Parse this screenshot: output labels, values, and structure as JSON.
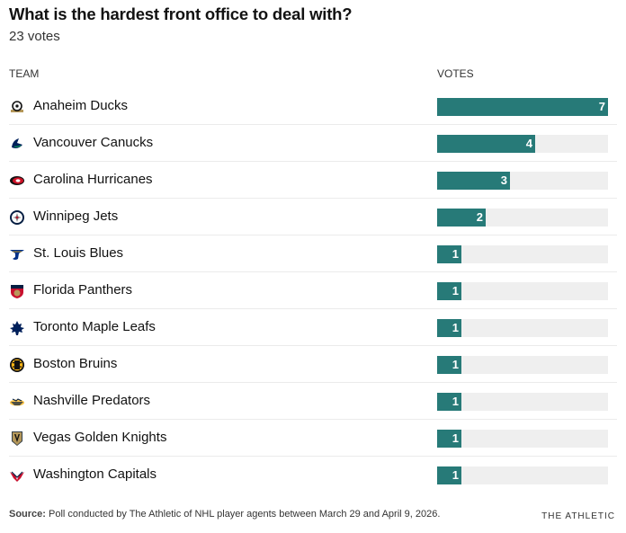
{
  "header": {
    "title": "What is the hardest front office to deal with?",
    "subtitle": "23 votes"
  },
  "columns": {
    "team": "TEAM",
    "votes": "VOTES"
  },
  "colors": {
    "bar": "#277a78",
    "track": "#efefef"
  },
  "chart_data": {
    "type": "bar",
    "orientation": "horizontal",
    "title": "What is the hardest front office to deal with?",
    "subtitle": "23 votes",
    "xlabel": "VOTES",
    "ylabel": "TEAM",
    "xlim": [
      0,
      7
    ],
    "categories": [
      "Anaheim Ducks",
      "Vancouver Canucks",
      "Carolina Hurricanes",
      "Winnipeg Jets",
      "St. Louis Blues",
      "Florida Panthers",
      "Toronto Maple Leafs",
      "Boston Bruins",
      "Nashville Predators",
      "Vegas Golden Knights",
      "Washington Capitals"
    ],
    "values": [
      7,
      4,
      3,
      2,
      1,
      1,
      1,
      1,
      1,
      1,
      1
    ],
    "logos": [
      "ducks-logo",
      "canucks-logo",
      "hurricanes-logo",
      "jets-logo",
      "blues-logo",
      "panthers-logo",
      "maple-leafs-logo",
      "bruins-logo",
      "predators-logo",
      "golden-knights-logo",
      "capitals-logo"
    ],
    "grid": false,
    "legend": "none"
  },
  "footer": {
    "source_label": "Source:",
    "source_text": " Poll conducted by The Athletic of NHL player agents between March 29 and April 9, 2026.",
    "brand": "THE ATHLETIC"
  }
}
